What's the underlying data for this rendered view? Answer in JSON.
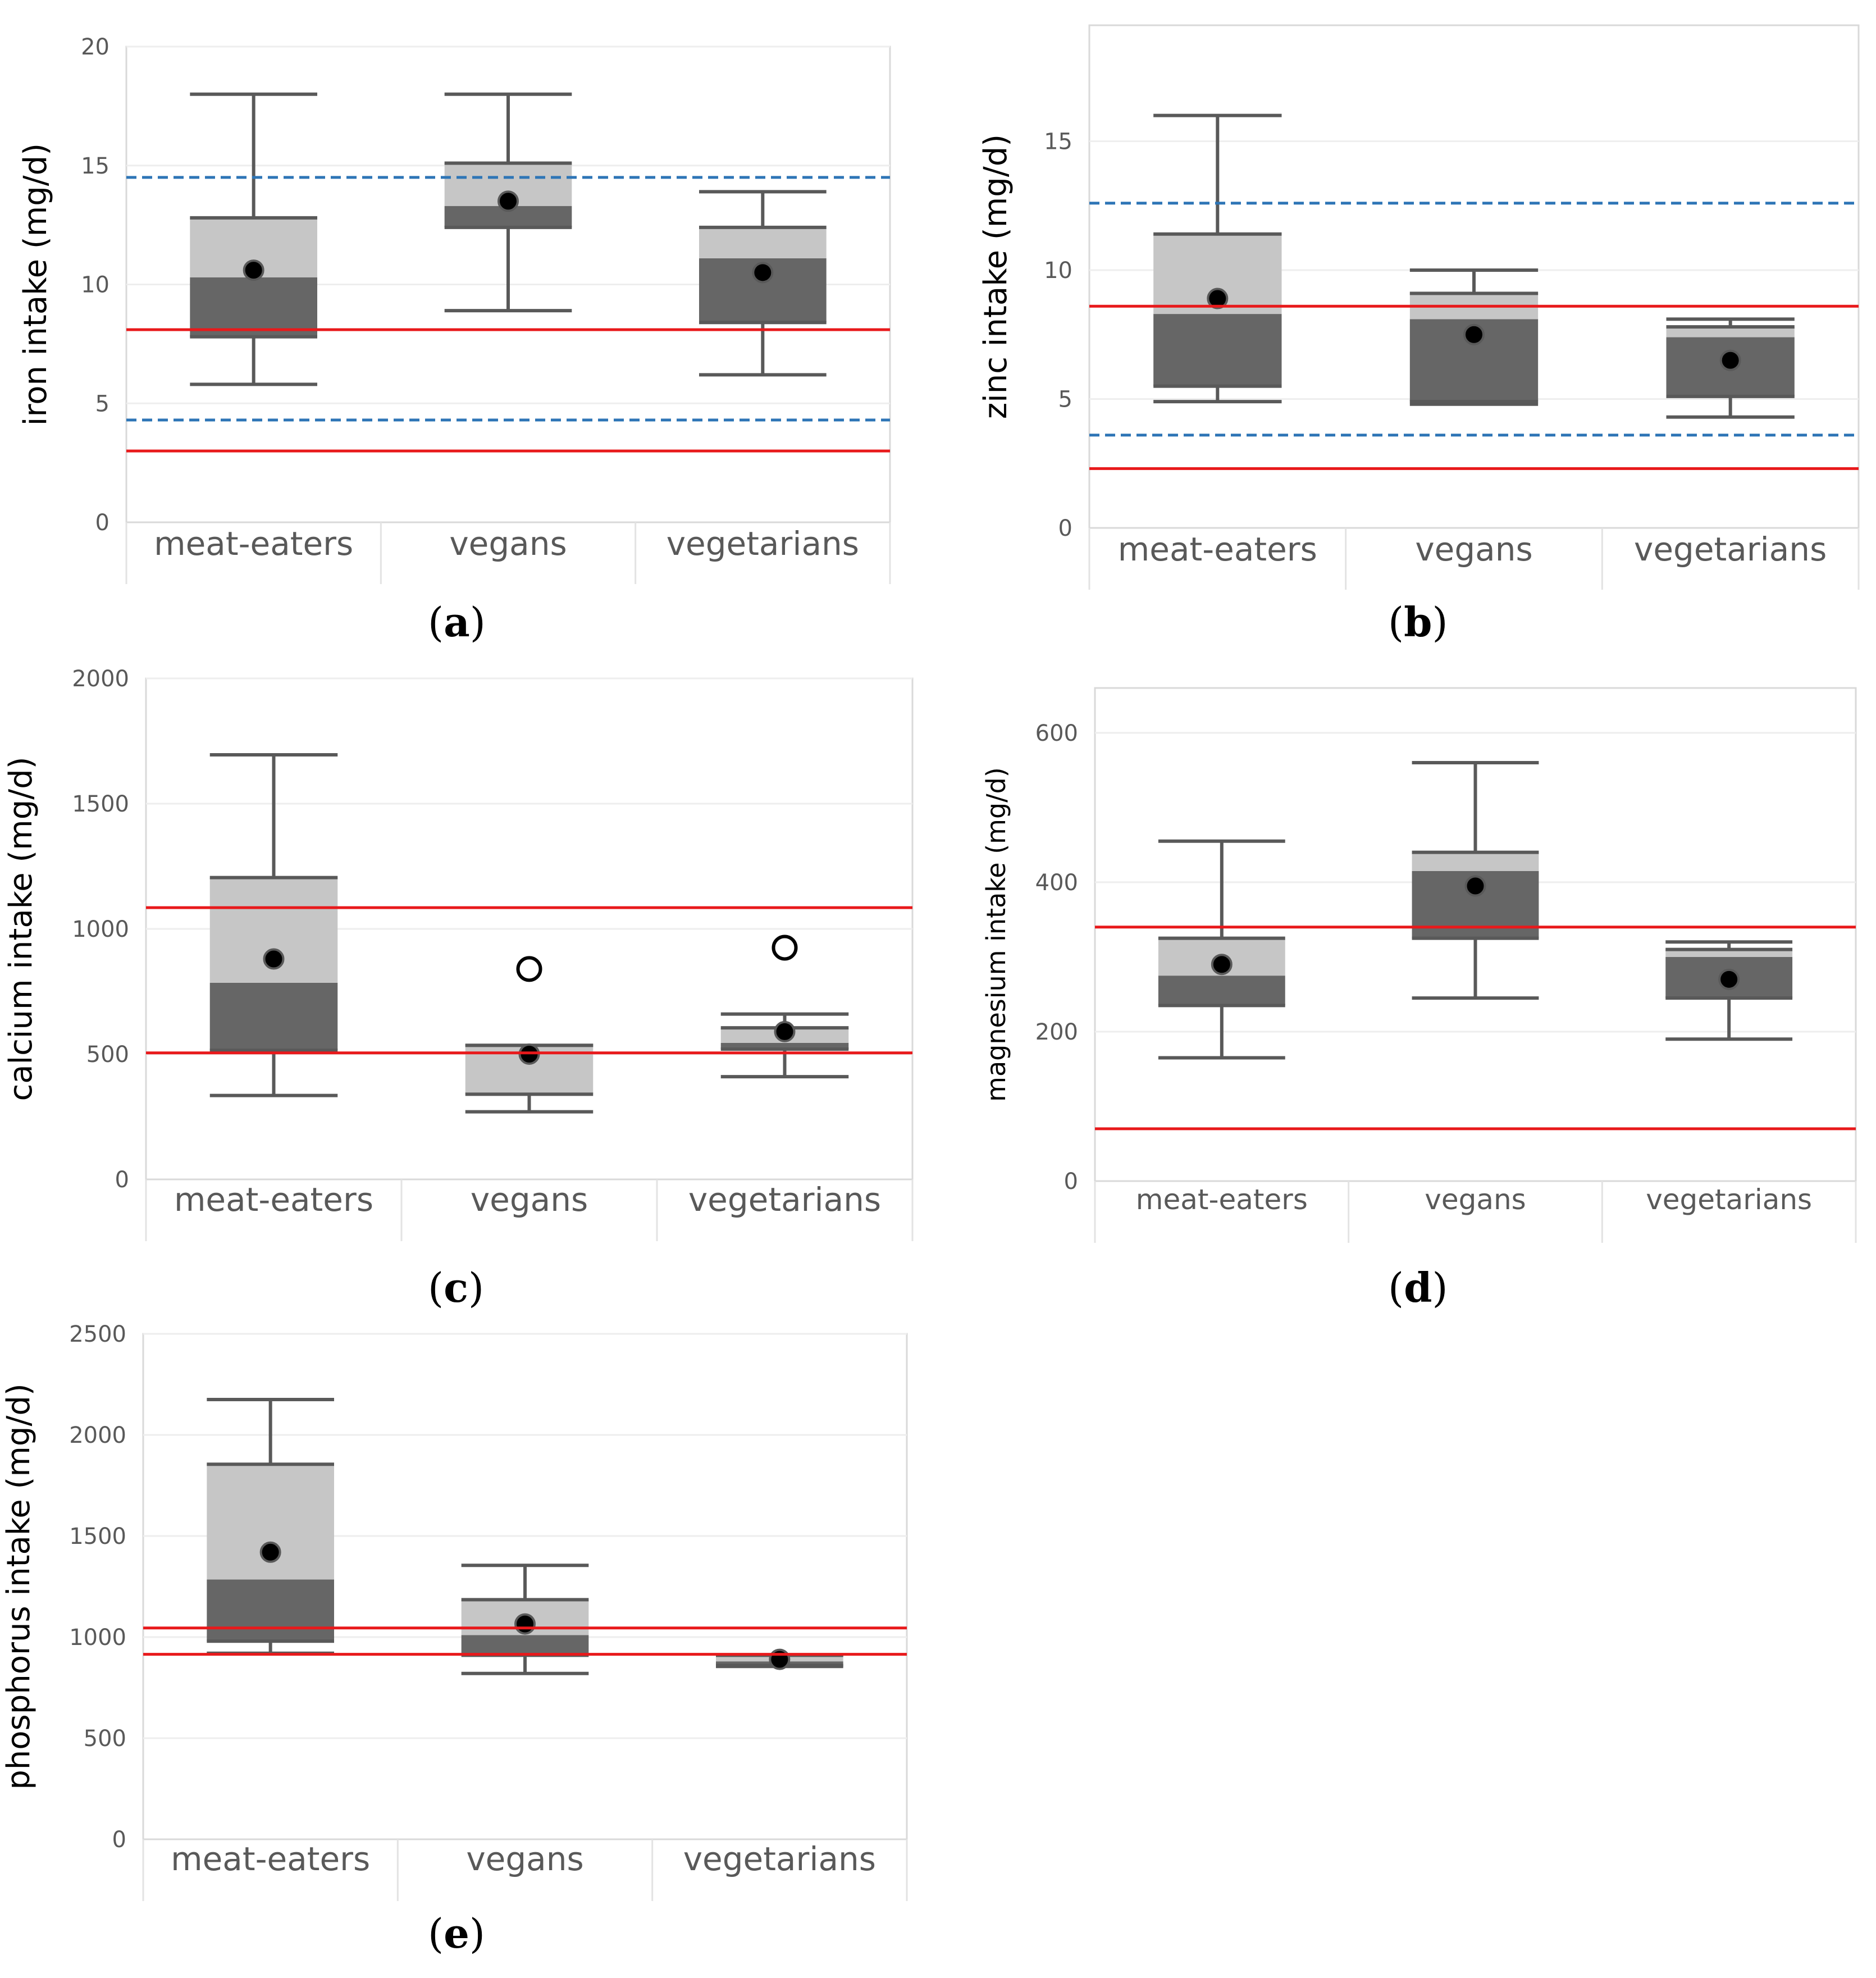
{
  "figure": {
    "panel_labels": {
      "a": [
        "(",
        "a",
        ")"
      ],
      "b": [
        "(",
        "b",
        ")"
      ],
      "c": [
        "(",
        "c",
        ")"
      ],
      "d": [
        "(",
        "d",
        ")"
      ],
      "e": [
        "(",
        "e",
        ")"
      ]
    }
  },
  "colors": {
    "box_dark": "#666666",
    "box_light": "#c6c6c6",
    "whisker": "#595959",
    "red_line": "#e8191b",
    "blue_line": "#2e75b6",
    "grid": "#eeeeee",
    "axis_text": "#595959",
    "mean_dot": "#000000"
  },
  "chart_data": [
    {
      "id": "a",
      "type": "box",
      "ylabel": "iron intake (mg/d)",
      "ylim": [
        0,
        20
      ],
      "yticks": [
        0,
        5,
        10,
        15,
        20
      ],
      "categories": [
        "meat-eaters",
        "vegans",
        "vegetarians"
      ],
      "boxes": [
        {
          "min": 5.8,
          "q1": 7.8,
          "median": 10.3,
          "q3": 12.8,
          "max": 18.0,
          "mean": 10.6
        },
        {
          "min": 8.9,
          "q1": 12.4,
          "median": 13.3,
          "q3": 15.1,
          "max": 18.0,
          "mean": 13.5
        },
        {
          "min": 6.2,
          "q1": 8.4,
          "median": 11.1,
          "q3": 12.4,
          "max": 13.9,
          "mean": 10.5
        }
      ],
      "red_lines": [
        8.1,
        3.0
      ],
      "blue_dashed_lines": [
        14.5,
        4.3
      ],
      "outliers": []
    },
    {
      "id": "b",
      "type": "box",
      "ylabel": "zinc intake (mg/d)",
      "ylim": [
        0,
        19.5
      ],
      "yticks": [
        0,
        5,
        10,
        15
      ],
      "categories": [
        "meat-eaters",
        "vegans",
        "vegetarians"
      ],
      "boxes": [
        {
          "min": 4.9,
          "q1": 5.5,
          "median": 8.3,
          "q3": 11.4,
          "max": 16.0,
          "mean": 8.9
        },
        {
          "min": 4.8,
          "q1": 4.9,
          "median": 8.1,
          "q3": 9.1,
          "max": 10.0,
          "mean": 7.5
        },
        {
          "min": 4.3,
          "q1": 5.1,
          "median": 7.4,
          "q3": 7.8,
          "max": 8.1,
          "mean": 6.5
        }
      ],
      "red_lines": [
        8.6,
        2.3
      ],
      "blue_dashed_lines": [
        12.6,
        3.6
      ],
      "outliers": []
    },
    {
      "id": "c",
      "type": "box",
      "ylabel": "calcium intake (mg/d)",
      "ylim": [
        0,
        2000
      ],
      "yticks": [
        0,
        500,
        1000,
        1500,
        2000
      ],
      "categories": [
        "meat-eaters",
        "vegans",
        "vegetarians"
      ],
      "boxes": [
        {
          "min": 335,
          "q1": 515,
          "median": 785,
          "q3": 1205,
          "max": 1695,
          "mean": 880
        },
        {
          "min": 270,
          "q1": 340,
          "median": 340,
          "q3": 535,
          "max": 535,
          "mean": 500
        },
        {
          "min": 410,
          "q1": 520,
          "median": 545,
          "q3": 605,
          "max": 660,
          "mean": 590
        }
      ],
      "red_lines": [
        1085,
        505
      ],
      "blue_dashed_lines": [],
      "outliers": [
        {
          "category": 1,
          "value": 840
        },
        {
          "category": 2,
          "value": 925
        }
      ]
    },
    {
      "id": "d",
      "type": "box",
      "ylabel": "magnesium intake (mg/d)",
      "ylim": [
        0,
        660
      ],
      "yticks": [
        0,
        200,
        400,
        600
      ],
      "categories": [
        "meat-eaters",
        "vegans",
        "vegetarians"
      ],
      "boxes": [
        {
          "min": 165,
          "q1": 235,
          "median": 275,
          "q3": 325,
          "max": 455,
          "mean": 290
        },
        {
          "min": 245,
          "q1": 325,
          "median": 415,
          "q3": 440,
          "max": 560,
          "mean": 395
        },
        {
          "min": 190,
          "q1": 245,
          "median": 300,
          "q3": 310,
          "max": 320,
          "mean": 270
        }
      ],
      "red_lines": [
        340,
        70
      ],
      "blue_dashed_lines": [],
      "outliers": []
    },
    {
      "id": "e",
      "type": "box",
      "ylabel": "phosphorus intake (mg/d)",
      "ylim": [
        0,
        2500
      ],
      "yticks": [
        0,
        500,
        1000,
        1500,
        2000,
        2500
      ],
      "categories": [
        "meat-eaters",
        "vegans",
        "vegetarians"
      ],
      "boxes": [
        {
          "min": 920,
          "q1": 980,
          "median": 1285,
          "q3": 1855,
          "max": 2175,
          "mean": 1420
        },
        {
          "min": 820,
          "q1": 910,
          "median": 1010,
          "q3": 1185,
          "max": 1355,
          "mean": 1065
        },
        {
          "min": 855,
          "q1": 860,
          "median": 880,
          "q3": 910,
          "max": 910,
          "mean": 890
        }
      ],
      "red_lines": [
        1045,
        915
      ],
      "blue_dashed_lines": [],
      "outliers": []
    }
  ]
}
